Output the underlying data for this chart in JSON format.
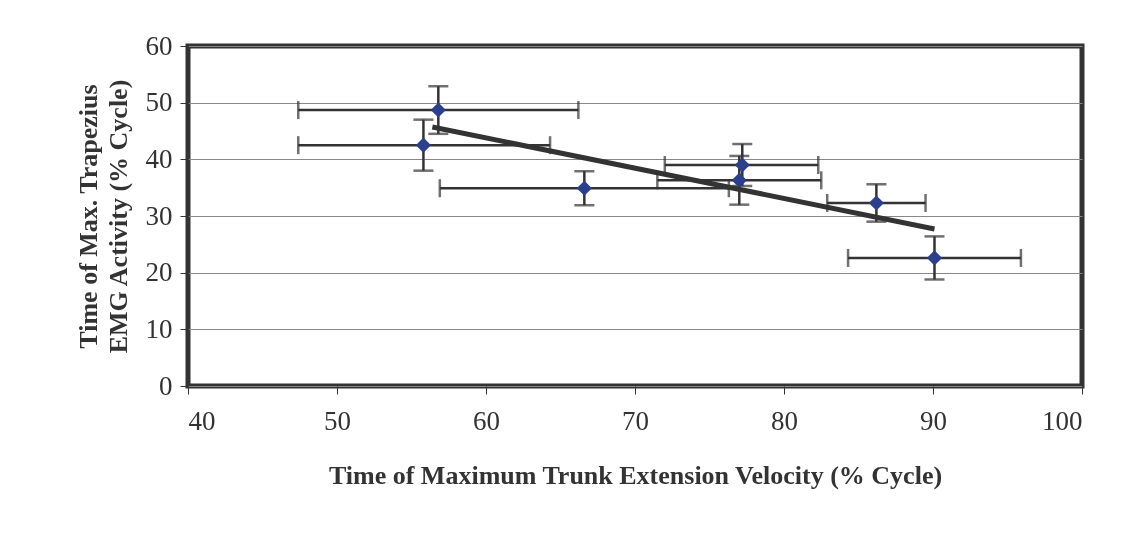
{
  "chart_data": {
    "type": "scatter",
    "xlabel": "Time of Maximum Trunk Extension Velocity (% Cycle)",
    "ylabel": "Time of Max.  Trapezius\nEMG Activity (% Cycle)",
    "xlim": [
      40,
      100
    ],
    "xticks": [
      40,
      50,
      60,
      70,
      80,
      90,
      100
    ],
    "ylim": [
      0,
      60
    ],
    "yticks": [
      0,
      10,
      20,
      30,
      40,
      50,
      60
    ],
    "grid": "y",
    "series": [
      {
        "color": "#2b3f8c",
        "marker": "diamond",
        "x": [
          56.8,
          55.8,
          66.6,
          77.2,
          77.0,
          86.2,
          90.1
        ],
        "values": [
          48.7,
          42.5,
          34.9,
          39.0,
          36.3,
          32.3,
          22.6
        ],
        "errors": [
          4.2,
          4.5,
          3.0,
          3.7,
          4.3,
          3.3,
          3.8
        ],
        "xerrors": [
          9.4,
          [
            47.4,
            64.3
          ],
          9.7,
          [
            72.0,
            82.3
          ],
          [
            71.5,
            82.5
          ],
          3.3,
          5.8
        ]
      },
      {
        "type": "line",
        "color": "#333333",
        "marker": "none",
        "line_style": "solid",
        "x": [
          56.4,
          90.1
        ],
        "values": [
          45.7,
          27.7
        ]
      }
    ]
  }
}
